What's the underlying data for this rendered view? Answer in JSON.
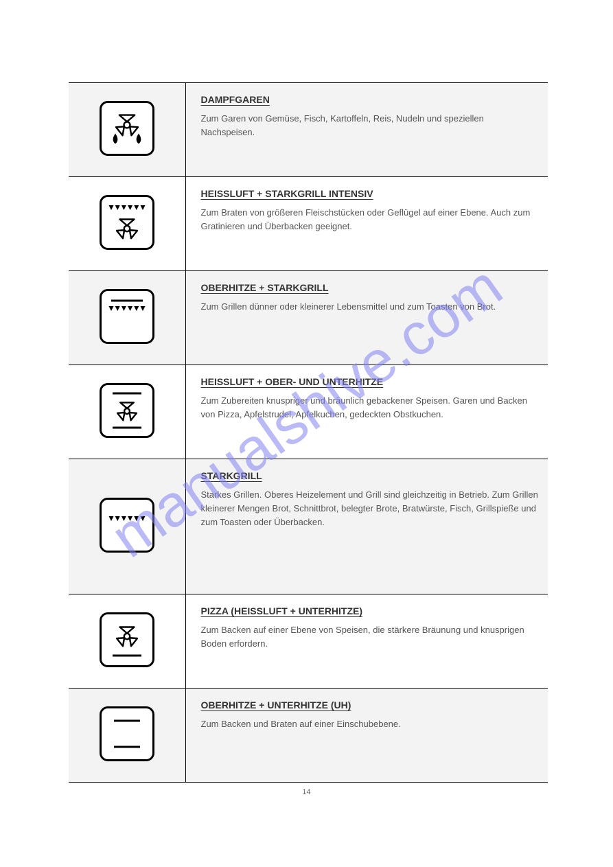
{
  "watermark_text": "manualshive.com",
  "modes": [
    {
      "heading": "DAMPFGAREN",
      "body": "Zum Garen von Gemüse, Fisch, Kartoffeln, Reis, Nudeln und speziellen Nachspeisen.",
      "icon": "fan-droplets",
      "shade": true,
      "tall": false
    },
    {
      "heading": "HEISSLUFT + STARKGRILL INTENSIV",
      "body": "Zum Braten von größeren Fleischstücken oder Geflügel auf einer Ebene. Auch zum Gratinieren und Überbacken geeignet.",
      "icon": "triangles-fan",
      "shade": false,
      "tall": false
    },
    {
      "heading": "OBERHITZE + STARKGRILL",
      "body": "Zum Grillen dünner oder kleinerer Lebensmittel und zum Toasten von Brot.",
      "icon": "top-line-triangles",
      "shade": true,
      "tall": false
    },
    {
      "heading": "HEISSLUFT + OBER- UND UNTERHITZE",
      "body": "Zum Zubereiten knuspriger und bräunlich gebackener Speisen. Garen und Backen von Pizza, Apfelstrudel, Apfelkuchen, gedeckten Obstkuchen.",
      "icon": "top-bottom-fan",
      "shade": false,
      "tall": false
    },
    {
      "heading": "STARKGRILL",
      "body": "Starkes Grillen.  Oberes Heizelement und Grill sind gleichzeitig in Betrieb.  Zum Grillen kleinerer Mengen Brot, Schnittbrot, belegter Brote, Bratwürste, Fisch, Grillspieße und zum Toasten oder Überbacken.",
      "icon": "triangles-only",
      "shade": true,
      "tall": true
    },
    {
      "heading": "PIZZA (HEISSLUFT + UNTERHITZE)",
      "body": "Zum Backen auf einer Ebene von Speisen, die stärkere Bräunung und knusprigen Boden erfordern.",
      "icon": "fan-bottom",
      "shade": false,
      "tall": false
    },
    {
      "heading": "OBERHITZE + UNTERHITZE (UH)",
      "body": "Zum Backen und Braten auf einer Einschubebene.",
      "icon": "top-bottom",
      "shade": true,
      "tall": false
    }
  ],
  "page_number": "14",
  "colors": {
    "border": "#000000",
    "shade": "#f3f3f3",
    "heading": "#333333",
    "body": "#555555",
    "watermark": "rgba(130,130,240,0.55)"
  }
}
